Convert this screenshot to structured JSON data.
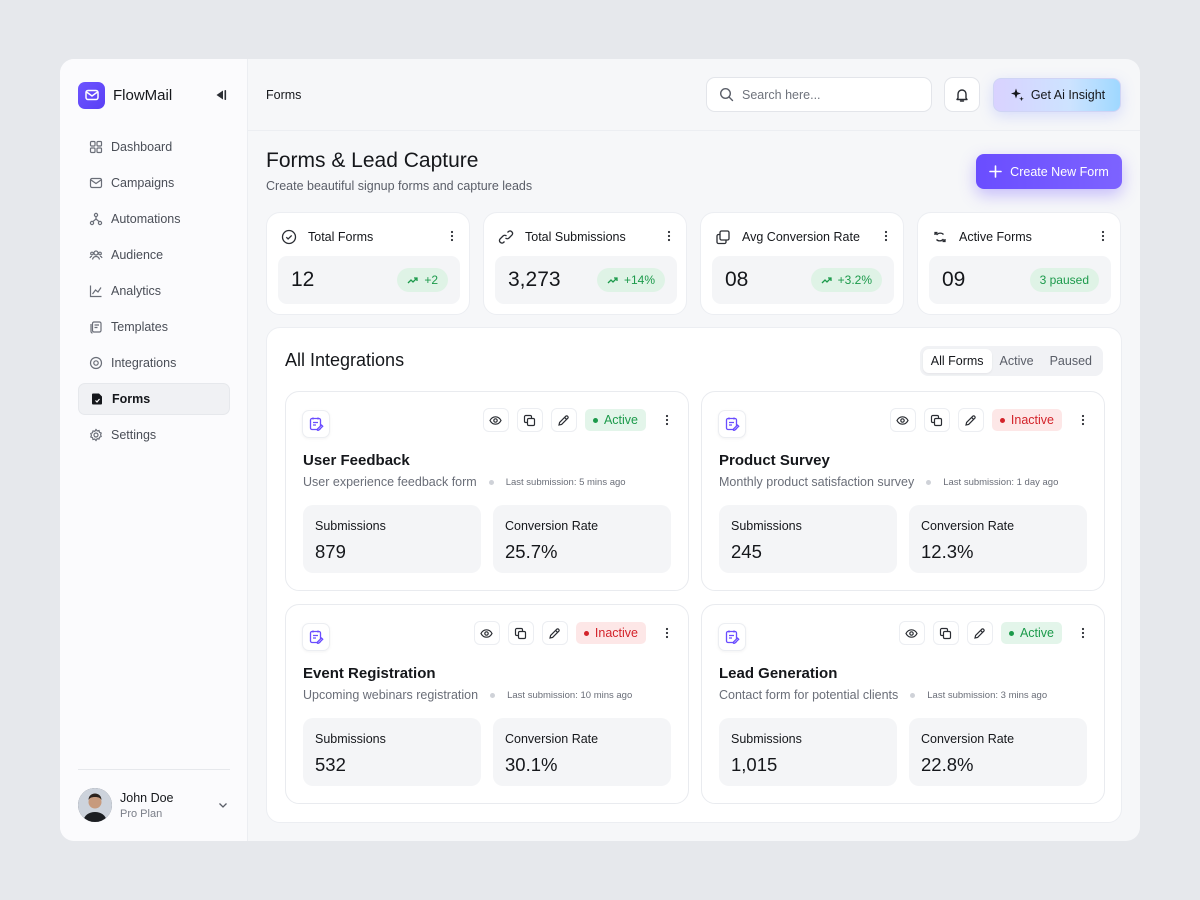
{
  "brand": {
    "name": "FlowMail",
    "accent": "#5a3ff5"
  },
  "sidebar": {
    "items": [
      {
        "label": "Dashboard",
        "icon": "grid-icon"
      },
      {
        "label": "Campaigns",
        "icon": "mail-icon"
      },
      {
        "label": "Automations",
        "icon": "nodes-icon"
      },
      {
        "label": "Audience",
        "icon": "users-icon"
      },
      {
        "label": "Analytics",
        "icon": "chart-icon"
      },
      {
        "label": "Templates",
        "icon": "templates-icon"
      },
      {
        "label": "Integrations",
        "icon": "integrations-icon"
      },
      {
        "label": "Forms",
        "icon": "forms-icon",
        "active": true
      },
      {
        "label": "Settings",
        "icon": "gear-icon"
      }
    ]
  },
  "user": {
    "name": "John Doe",
    "plan": "Pro Plan"
  },
  "header": {
    "breadcrumb": "Forms",
    "search_placeholder": "Search here...",
    "ai_button": "Get Ai Insight"
  },
  "page": {
    "title": "Forms & Lead Capture",
    "subtitle": "Create beautiful signup forms and capture leads",
    "create_button": "Create New Form"
  },
  "stats": [
    {
      "label": "Total Forms",
      "value": "12",
      "badge": "+2",
      "trend": true
    },
    {
      "label": "Total Submissions",
      "value": "3,273",
      "badge": "+14%",
      "trend": true
    },
    {
      "label": "Avg Conversion Rate",
      "value": "08",
      "badge": "+3.2%",
      "trend": true
    },
    {
      "label": "Active Forms",
      "value": "09",
      "badge": "3 paused",
      "trend": false
    }
  ],
  "integrations": {
    "title": "All Integrations",
    "filters": [
      "All Forms",
      "Active",
      "Paused"
    ],
    "active_filter": "All Forms",
    "cards": [
      {
        "title": "User Feedback",
        "description": "User experience feedback form",
        "last": "Last submission: 5 mins ago",
        "status": "Active",
        "submissions_label": "Submissions",
        "submissions": "879",
        "conversion_label": "Conversion Rate",
        "conversion": "25.7%"
      },
      {
        "title": "Product Survey",
        "description": "Monthly product satisfaction survey",
        "last": "Last submission: 1 day ago",
        "status": "Inactive",
        "submissions_label": "Submissions",
        "submissions": "245",
        "conversion_label": "Conversion Rate",
        "conversion": "12.3%"
      },
      {
        "title": "Event Registration",
        "description": "Upcoming webinars registration",
        "last": "Last submission: 10 mins ago",
        "status": "Inactive",
        "submissions_label": "Submissions",
        "submissions": "532",
        "conversion_label": "Conversion Rate",
        "conversion": "30.1%"
      },
      {
        "title": "Lead Generation",
        "description": "Contact form for potential clients",
        "last": "Last submission: 3 mins ago",
        "status": "Active",
        "submissions_label": "Submissions",
        "submissions": "1,015",
        "conversion_label": "Conversion Rate",
        "conversion": "22.8%"
      }
    ]
  }
}
